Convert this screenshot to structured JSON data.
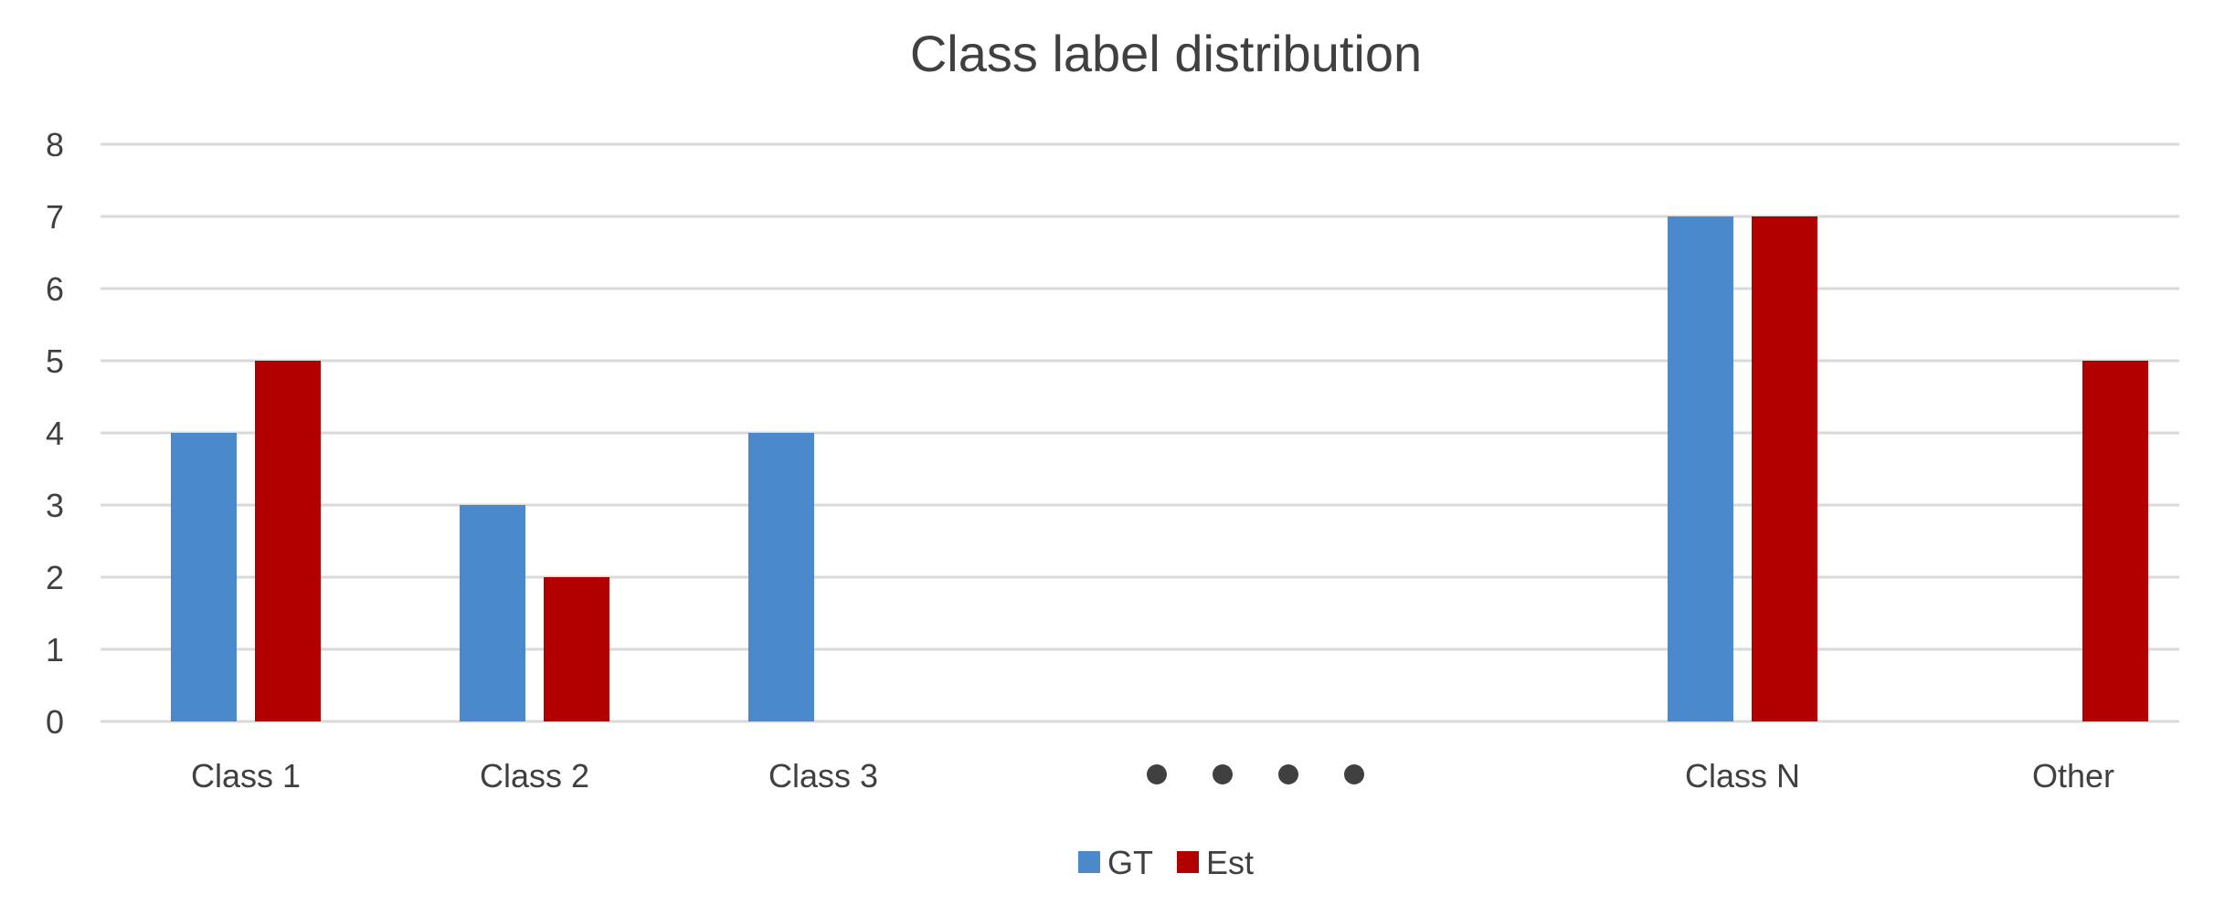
{
  "chart_data": {
    "type": "bar",
    "title": "Class label distribution",
    "xlabel": "",
    "ylabel": "",
    "categories": [
      "Class 1",
      "Class 2",
      "Class 3",
      "",
      "Class N",
      "Other"
    ],
    "ellipsis_after_category": "Class 3",
    "series": [
      {
        "name": "GT",
        "color": "#4a89cb",
        "values": [
          4,
          3,
          4,
          null,
          7,
          null
        ]
      },
      {
        "name": "Est",
        "color": "#b20000",
        "values": [
          5,
          2,
          null,
          null,
          7,
          5
        ]
      }
    ],
    "ylim": [
      0,
      8
    ],
    "yticks": [
      0,
      1,
      2,
      3,
      4,
      5,
      6,
      7,
      8
    ],
    "grid": true,
    "legend_position": "bottom",
    "colors": {
      "gridline": "#d9d9d9",
      "text": "#404040",
      "ellipsis_dots": "#404040"
    }
  }
}
